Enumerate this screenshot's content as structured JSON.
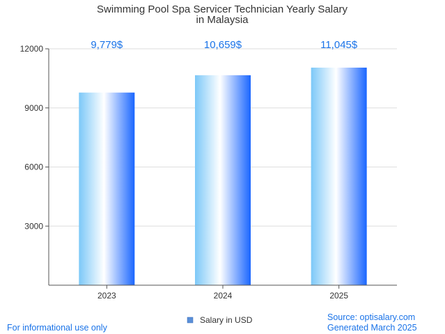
{
  "chart_data": {
    "type": "bar",
    "title": [
      "Swimming Pool Spa Servicer Technician Yearly Salary",
      "in Malaysia"
    ],
    "categories": [
      "2023",
      "2024",
      "2025"
    ],
    "series": [
      {
        "name": "Salary in USD",
        "values": [
          9779,
          10659,
          11045
        ],
        "labels": [
          "9,779$",
          "10,659$",
          "11,045$"
        ]
      }
    ],
    "ylim": [
      0,
      12000
    ],
    "yticks": [
      "3000",
      "6000",
      "9000",
      "12000"
    ],
    "ytick_values": [
      3000,
      6000,
      9000,
      12000
    ],
    "grid": true,
    "legend_position": "bottom"
  },
  "footer": {
    "disclaimer": "For informational use only",
    "source": "Source: optisalary.com",
    "generated": "Generated March 2025"
  },
  "colors": {
    "bar_gradient": [
      "#7cc8f8",
      "#ffffff",
      "#1a66ff"
    ],
    "label": "#1a73e8",
    "grid": "#dddddd",
    "axis": "#555555",
    "legend_swatch": "#5a8fd8"
  }
}
